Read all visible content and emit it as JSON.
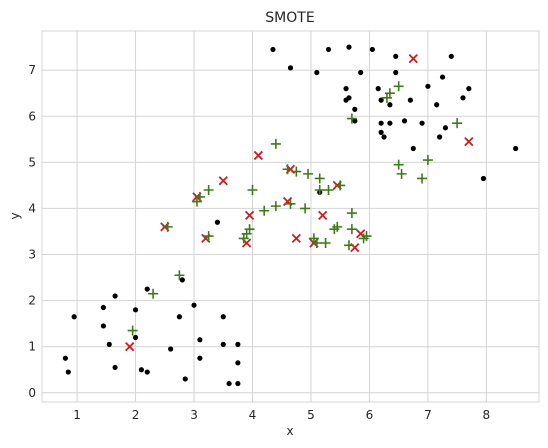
{
  "chart_data": {
    "type": "scatter",
    "title": "SMOTE",
    "xlabel": "x",
    "ylabel": "y",
    "xlim": [
      0.4,
      8.9
    ],
    "ylim": [
      -0.2,
      7.85
    ],
    "xticks": [
      1,
      2,
      3,
      4,
      5,
      6,
      7,
      8
    ],
    "yticks": [
      0,
      1,
      2,
      3,
      4,
      5,
      6,
      7
    ],
    "grid": true,
    "colors": {
      "original": "#000000",
      "interpolated": "#ca1d22",
      "synthetic": "#3f7a1a",
      "grid": "#d4d4d4",
      "spine": "#d4d4d4",
      "background": "#ffffff"
    },
    "series": [
      {
        "marker": "dot",
        "points": [
          [
            0.8,
            0.75
          ],
          [
            0.85,
            0.45
          ],
          [
            0.95,
            1.65
          ],
          [
            1.45,
            1.85
          ],
          [
            1.45,
            1.45
          ],
          [
            1.55,
            1.05
          ],
          [
            1.65,
            2.1
          ],
          [
            1.65,
            0.55
          ],
          [
            2.0,
            1.2
          ],
          [
            2.0,
            1.8
          ],
          [
            2.1,
            0.5
          ],
          [
            2.2,
            0.45
          ],
          [
            2.2,
            2.25
          ],
          [
            2.6,
            0.95
          ],
          [
            2.75,
            1.65
          ],
          [
            2.8,
            2.45
          ],
          [
            2.85,
            0.3
          ],
          [
            3.0,
            1.9
          ],
          [
            3.1,
            1.15
          ],
          [
            3.1,
            0.75
          ],
          [
            3.4,
            3.7
          ],
          [
            3.5,
            1.65
          ],
          [
            3.5,
            1.05
          ],
          [
            3.6,
            0.2
          ],
          [
            3.75,
            0.2
          ],
          [
            3.75,
            0.65
          ],
          [
            3.75,
            1.05
          ],
          [
            4.35,
            7.45
          ],
          [
            4.65,
            7.05
          ],
          [
            5.1,
            6.95
          ],
          [
            5.15,
            4.35
          ],
          [
            5.3,
            7.45
          ],
          [
            5.65,
            7.5
          ],
          [
            5.6,
            6.6
          ],
          [
            5.6,
            6.35
          ],
          [
            5.65,
            6.4
          ],
          [
            5.75,
            6.15
          ],
          [
            5.75,
            5.9
          ],
          [
            5.85,
            6.95
          ],
          [
            6.05,
            7.45
          ],
          [
            6.15,
            6.6
          ],
          [
            6.2,
            5.85
          ],
          [
            6.2,
            5.65
          ],
          [
            6.2,
            6.35
          ],
          [
            6.25,
            5.55
          ],
          [
            6.35,
            6.25
          ],
          [
            6.35,
            5.85
          ],
          [
            6.45,
            7.3
          ],
          [
            6.45,
            6.95
          ],
          [
            6.6,
            5.9
          ],
          [
            6.7,
            6.35
          ],
          [
            6.75,
            5.3
          ],
          [
            6.9,
            5.85
          ],
          [
            7.0,
            6.65
          ],
          [
            7.15,
            6.25
          ],
          [
            7.2,
            5.55
          ],
          [
            7.25,
            6.85
          ],
          [
            7.3,
            5.75
          ],
          [
            7.4,
            7.3
          ],
          [
            7.6,
            6.4
          ],
          [
            7.7,
            6.6
          ],
          [
            7.95,
            4.65
          ],
          [
            8.5,
            5.3
          ]
        ]
      },
      {
        "marker": "x",
        "points": [
          [
            1.9,
            1.0
          ],
          [
            2.5,
            3.6
          ],
          [
            3.05,
            4.25
          ],
          [
            3.2,
            3.35
          ],
          [
            3.5,
            4.6
          ],
          [
            3.9,
            3.25
          ],
          [
            3.95,
            3.85
          ],
          [
            4.1,
            5.15
          ],
          [
            4.6,
            4.15
          ],
          [
            4.65,
            4.85
          ],
          [
            4.75,
            3.35
          ],
          [
            5.05,
            3.25
          ],
          [
            5.2,
            3.85
          ],
          [
            5.45,
            4.5
          ],
          [
            5.75,
            3.15
          ],
          [
            5.85,
            3.45
          ],
          [
            6.75,
            7.25
          ],
          [
            7.7,
            5.45
          ]
        ]
      },
      {
        "marker": "+",
        "points": [
          [
            1.95,
            1.35
          ],
          [
            2.3,
            2.15
          ],
          [
            2.55,
            3.6
          ],
          [
            2.75,
            2.55
          ],
          [
            3.05,
            4.15
          ],
          [
            3.1,
            4.25
          ],
          [
            3.25,
            4.4
          ],
          [
            3.25,
            3.4
          ],
          [
            3.85,
            3.35
          ],
          [
            3.9,
            3.45
          ],
          [
            3.95,
            3.55
          ],
          [
            4.0,
            4.4
          ],
          [
            4.2,
            3.95
          ],
          [
            4.4,
            4.05
          ],
          [
            4.4,
            5.4
          ],
          [
            4.6,
            4.85
          ],
          [
            4.65,
            4.1
          ],
          [
            4.75,
            4.8
          ],
          [
            4.9,
            4.0
          ],
          [
            4.95,
            4.75
          ],
          [
            5.05,
            3.35
          ],
          [
            5.1,
            3.25
          ],
          [
            5.15,
            4.65
          ],
          [
            5.15,
            4.4
          ],
          [
            5.25,
            3.25
          ],
          [
            5.3,
            4.4
          ],
          [
            5.4,
            3.55
          ],
          [
            5.45,
            3.6
          ],
          [
            5.5,
            4.5
          ],
          [
            5.65,
            3.2
          ],
          [
            5.7,
            5.95
          ],
          [
            5.7,
            3.55
          ],
          [
            5.7,
            3.9
          ],
          [
            5.9,
            3.35
          ],
          [
            5.95,
            3.4
          ],
          [
            6.3,
            6.4
          ],
          [
            6.35,
            6.5
          ],
          [
            6.5,
            6.65
          ],
          [
            6.5,
            4.95
          ],
          [
            6.55,
            4.75
          ],
          [
            6.9,
            4.65
          ],
          [
            7.0,
            5.05
          ],
          [
            7.5,
            5.85
          ]
        ]
      }
    ]
  }
}
